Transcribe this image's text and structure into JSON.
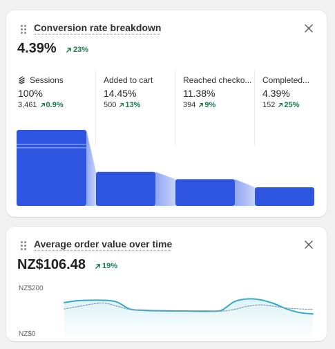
{
  "conversion": {
    "title": "Conversion rate breakdown",
    "value": "4.39%",
    "change": "23%",
    "steps": [
      {
        "label": "Sessions",
        "percent": "100%",
        "count": "3,461",
        "change": "0.9%",
        "rate": 100
      },
      {
        "label": "Added to cart",
        "percent": "14.45%",
        "count": "500",
        "change": "13%",
        "rate": 14.45
      },
      {
        "label": "Reached checko...",
        "percent": "11.38%",
        "count": "394",
        "change": "9%",
        "rate": 11.38
      },
      {
        "label": "Completed...",
        "percent": "4.39%",
        "count": "152",
        "change": "25%",
        "rate": 4.39
      }
    ]
  },
  "aov": {
    "title": "Average order value over time",
    "value": "NZ$106.48",
    "change": "19%"
  },
  "chart_data": {
    "type": "line",
    "y_tick_labels": [
      "NZ$200",
      "NZ$0"
    ],
    "ylim": [
      0,
      200
    ],
    "series": [
      {
        "style": "solid",
        "color": "#34a8c7",
        "values": [
          140,
          148,
          150,
          150,
          143,
          112,
          106,
          104,
          103,
          103,
          102,
          102,
          106,
          144,
          156,
          152,
          136,
          112,
          96,
          90
        ]
      },
      {
        "style": "dotted",
        "color": "#7c98b0",
        "values": [
          112,
          122,
          132,
          138,
          125,
          110,
          108,
          106,
          105,
          104,
          104,
          104,
          102,
          110,
          124,
          130,
          124,
          116,
          112,
          110
        ]
      }
    ]
  },
  "colors": {
    "accent": "#2e55e0",
    "positive": "#18794e"
  }
}
